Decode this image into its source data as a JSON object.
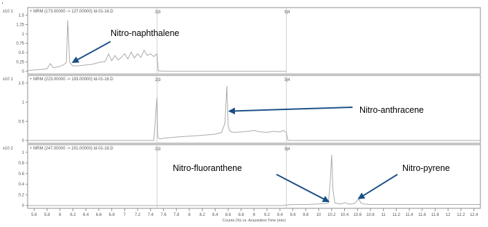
{
  "corner_mark": ".",
  "x_axis_label": "Counts (%) vs. Acquisition Time (min)",
  "x_tick_labels": [
    "5.6",
    "5.8",
    "6",
    "6.2",
    "6.4",
    "6.6",
    "6.8",
    "7",
    "7.2",
    "7.4",
    "7.6",
    "7.8",
    "8",
    "8.2",
    "8.4",
    "8.6",
    "8.8",
    "9",
    "9.2",
    "9.4",
    "9.6",
    "9.8",
    "10",
    "10.2",
    "10.4",
    "10.6",
    "10.8",
    "11",
    "11.2",
    "11.4",
    "11.6",
    "11.8",
    "12",
    "12.2",
    "12.4"
  ],
  "colors": {
    "trace": "#a9a9a9",
    "arrow": "#1a4f86",
    "frame": "#8c8c8c",
    "segment_line": "#d0d0d0",
    "text": "#000000",
    "small_text": "#555555"
  },
  "chart_data": [
    {
      "type": "line",
      "header": "+ MRM (173.00000 -> 127.00000) Id-01-16.D",
      "exponent_label": "x10 1",
      "y_tick_labels": [
        "1.5",
        "1.25",
        "1",
        "0.75",
        "0.5",
        "0.25",
        "0"
      ],
      "ylim": [
        0,
        1.6
      ],
      "xlim": [
        5.5,
        12.5
      ],
      "segment_labels": [
        "2|3",
        "3|4"
      ],
      "segment_x": [
        7.5,
        9.5
      ],
      "series": [
        {
          "x": [
            5.5,
            5.6,
            5.7,
            5.8,
            5.85,
            5.9,
            5.95,
            6.0,
            6.05,
            6.1,
            6.12,
            6.15,
            6.2,
            6.3,
            6.4,
            6.5,
            6.6,
            6.7,
            6.75,
            6.8,
            6.85,
            6.9,
            6.95,
            7.0,
            7.05,
            7.1,
            7.15,
            7.2,
            7.25,
            7.3,
            7.35,
            7.4,
            7.45,
            7.5,
            7.52,
            7.6,
            8.0,
            9.0,
            9.5
          ],
          "y": [
            0.02,
            0.04,
            0.05,
            0.07,
            0.22,
            0.1,
            0.12,
            0.14,
            0.18,
            0.25,
            1.45,
            0.25,
            0.15,
            0.16,
            0.18,
            0.2,
            0.25,
            0.28,
            0.5,
            0.3,
            0.45,
            0.32,
            0.4,
            0.5,
            0.35,
            0.55,
            0.38,
            0.5,
            0.4,
            0.6,
            0.45,
            0.5,
            0.42,
            0.5,
            0.01,
            0.0,
            0.0,
            0.0,
            0.0
          ]
        }
      ],
      "annotation": {
        "text": "Nitro-naphthalene",
        "x": 6.2,
        "y": 0.2
      }
    },
    {
      "type": "line",
      "header": "+ MRM (223.00000 -> 193.00000) Id-01-16.D",
      "exponent_label": "x10 1",
      "y_tick_labels": [
        "1.5",
        "1",
        "0.5",
        "0"
      ],
      "ylim": [
        0,
        2.0
      ],
      "xlim": [
        5.5,
        12.5
      ],
      "segment_labels": [
        "2|3",
        "3|4"
      ],
      "segment_x": [
        7.5,
        9.5
      ],
      "series": [
        {
          "x": [
            5.5,
            7.45,
            7.5,
            7.51,
            7.55,
            7.6,
            7.8,
            8.0,
            8.2,
            8.4,
            8.5,
            8.55,
            8.58,
            8.6,
            8.62,
            8.65,
            8.7,
            8.8,
            8.9,
            9.0,
            9.1,
            9.2,
            9.3,
            9.4,
            9.45,
            9.5,
            9.52,
            9.6,
            12.5
          ],
          "y": [
            0.0,
            0.0,
            1.5,
            0.1,
            0.05,
            0.08,
            0.12,
            0.15,
            0.18,
            0.22,
            0.28,
            0.6,
            1.9,
            0.5,
            0.35,
            0.3,
            0.28,
            0.3,
            0.32,
            0.35,
            0.3,
            0.28,
            0.32,
            0.3,
            0.35,
            0.28,
            0.01,
            0.0,
            0.0
          ]
        }
      ],
      "annotation": {
        "text": "Nitro-anthracene",
        "x": 8.62,
        "y": 0.95
      }
    },
    {
      "type": "line",
      "header": "+ MRM (247.00000 -> 201.00000) Id-01-16.D",
      "exponent_label": "x10 2",
      "y_tick_labels": [
        "1",
        "0.8",
        "0.6",
        "0.4",
        "0.2",
        "0"
      ],
      "ylim": [
        0,
        1.05
      ],
      "xlim": [
        5.5,
        12.5
      ],
      "segment_labels": [
        "2|3",
        "3|4"
      ],
      "segment_x": [
        7.5,
        9.5
      ],
      "series": [
        {
          "x": [
            5.5,
            9.45,
            9.5,
            9.6,
            9.8,
            10.0,
            10.1,
            10.15,
            10.18,
            10.2,
            10.22,
            10.25,
            10.3,
            10.35,
            10.4,
            10.45,
            10.5,
            10.55,
            10.6,
            10.62,
            10.65,
            10.7,
            10.8,
            11.0,
            11.5,
            12.0,
            12.5
          ],
          "y": [
            0.0,
            0.0,
            0.01,
            0.02,
            0.02,
            0.03,
            0.04,
            0.05,
            0.5,
            1.0,
            0.3,
            0.05,
            0.04,
            0.03,
            0.06,
            0.03,
            0.03,
            0.04,
            0.1,
            0.14,
            0.05,
            0.03,
            0.02,
            0.02,
            0.02,
            0.02,
            0.02
          ]
        }
      ],
      "annotations": [
        {
          "text": "Nitro-fluoranthene",
          "x": 10.15,
          "y": 0.04
        },
        {
          "text": "Nitro-pyrene",
          "x": 10.62,
          "y": 0.1
        }
      ]
    }
  ]
}
